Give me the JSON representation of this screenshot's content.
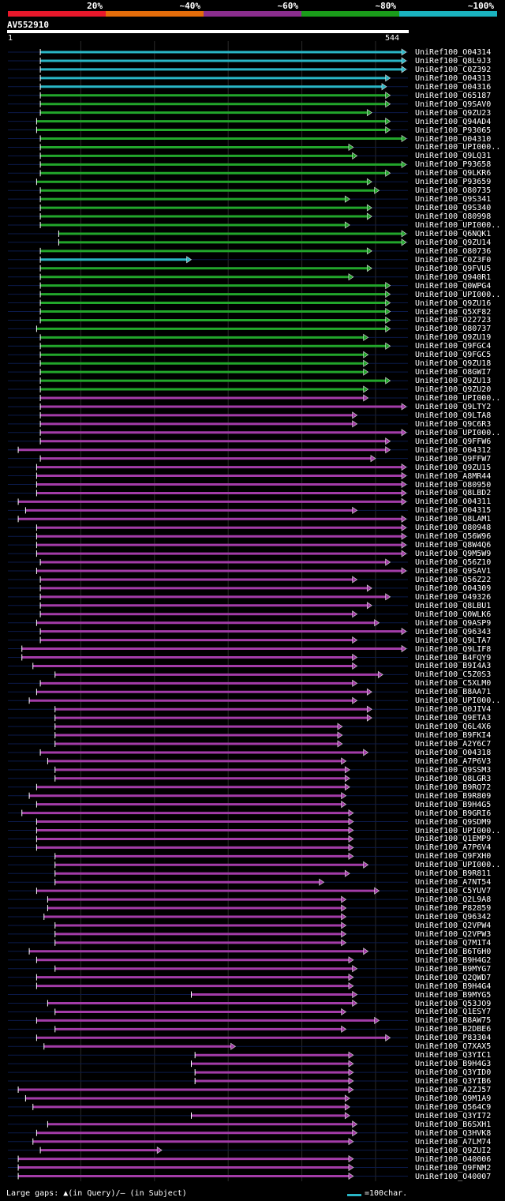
{
  "legend": {
    "segments": [
      {
        "label": "20%",
        "color": "#e8182b"
      },
      {
        "label": "~40%",
        "color": "#e46c0a"
      },
      {
        "label": "~60%",
        "color": "#8b2e8e"
      },
      {
        "label": "~80%",
        "color": "#1a9c1a"
      },
      {
        "label": "~100%",
        "color": "#1ab3bf"
      }
    ]
  },
  "query": {
    "name": "AV552910",
    "start": "1",
    "end": "544"
  },
  "footer": {
    "text": "Large gaps: ▲(in Query)/– (in Subject)",
    "scale": "=100char."
  },
  "chart_data": {
    "type": "alignment-overview",
    "query_length": 544,
    "hits": [
      {
        "name": "UniRef100_O04314",
        "color": "cyan",
        "start": 45,
        "end": 544
      },
      {
        "name": "UniRef100_Q8L9J3",
        "color": "cyan",
        "start": 45,
        "end": 544
      },
      {
        "name": "UniRef100_C0Z392",
        "color": "cyan",
        "start": 45,
        "end": 544
      },
      {
        "name": "UniRef100_O04313",
        "color": "cyan",
        "start": 45,
        "end": 520
      },
      {
        "name": "UniRef100_O04316",
        "color": "cyan",
        "start": 45,
        "end": 515
      },
      {
        "name": "UniRef100_O65187",
        "color": "green",
        "start": 45,
        "end": 520
      },
      {
        "name": "UniRef100_Q9SAV0",
        "color": "green",
        "start": 45,
        "end": 520
      },
      {
        "name": "UniRef100_Q9ZU23",
        "color": "green",
        "start": 45,
        "end": 495
      },
      {
        "name": "UniRef100_Q94AD4",
        "color": "green",
        "start": 40,
        "end": 520
      },
      {
        "name": "UniRef100_P93065",
        "color": "green",
        "start": 40,
        "end": 520
      },
      {
        "name": "UniRef100_O04310",
        "color": "green",
        "start": 45,
        "end": 544
      },
      {
        "name": "UniRef100_UPI000..",
        "color": "green",
        "start": 45,
        "end": 470
      },
      {
        "name": "UniRef100_Q9LQ31",
        "color": "green",
        "start": 45,
        "end": 475
      },
      {
        "name": "UniRef100_P93658",
        "color": "green",
        "start": 45,
        "end": 544
      },
      {
        "name": "UniRef100_Q9LKR6",
        "color": "green",
        "start": 45,
        "end": 520
      },
      {
        "name": "UniRef100_P93659",
        "color": "green",
        "start": 40,
        "end": 495
      },
      {
        "name": "UniRef100_O80735",
        "color": "green",
        "start": 45,
        "end": 505
      },
      {
        "name": "UniRef100_Q9S341",
        "color": "green",
        "start": 45,
        "end": 465
      },
      {
        "name": "UniRef100_Q9S340",
        "color": "green",
        "start": 45,
        "end": 495
      },
      {
        "name": "UniRef100_O80998",
        "color": "green",
        "start": 45,
        "end": 495
      },
      {
        "name": "UniRef100_UPI000..",
        "color": "green",
        "start": 45,
        "end": 465
      },
      {
        "name": "UniRef100_Q6NQK1",
        "color": "green",
        "start": 70,
        "end": 544
      },
      {
        "name": "UniRef100_Q9ZU14",
        "color": "green",
        "start": 70,
        "end": 544
      },
      {
        "name": "UniRef100_O80736",
        "color": "green",
        "start": 45,
        "end": 495
      },
      {
        "name": "UniRef100_C0Z3F0",
        "color": "cyan",
        "start": 45,
        "end": 250
      },
      {
        "name": "UniRef100_Q9FVU5",
        "color": "green",
        "start": 45,
        "end": 495
      },
      {
        "name": "UniRef100_Q940R1",
        "color": "green",
        "start": 45,
        "end": 470
      },
      {
        "name": "UniRef100_Q0WPG4",
        "color": "green",
        "start": 45,
        "end": 520
      },
      {
        "name": "UniRef100_UPI000..",
        "color": "green",
        "start": 45,
        "end": 520
      },
      {
        "name": "UniRef100_Q9ZU16",
        "color": "green",
        "start": 45,
        "end": 520
      },
      {
        "name": "UniRef100_Q5XF82",
        "color": "green",
        "start": 45,
        "end": 520
      },
      {
        "name": "UniRef100_O22723",
        "color": "green",
        "start": 45,
        "end": 520
      },
      {
        "name": "UniRef100_O80737",
        "color": "green",
        "start": 40,
        "end": 520
      },
      {
        "name": "UniRef100_Q9ZU19",
        "color": "green",
        "start": 45,
        "end": 490
      },
      {
        "name": "UniRef100_Q9FGC4",
        "color": "green",
        "start": 45,
        "end": 520
      },
      {
        "name": "UniRef100_Q9FGC5",
        "color": "green",
        "start": 45,
        "end": 490
      },
      {
        "name": "UniRef100_Q9ZU18",
        "color": "green",
        "start": 45,
        "end": 490
      },
      {
        "name": "UniRef100_O8GWI7",
        "color": "green",
        "start": 45,
        "end": 490
      },
      {
        "name": "UniRef100_Q9ZU13",
        "color": "green",
        "start": 45,
        "end": 520
      },
      {
        "name": "UniRef100_Q9ZU20",
        "color": "green",
        "start": 45,
        "end": 490
      },
      {
        "name": "UniRef100_UPI000..",
        "color": "purple",
        "start": 45,
        "end": 490
      },
      {
        "name": "UniRef100_Q9LTY2",
        "color": "purple",
        "start": 45,
        "end": 544
      },
      {
        "name": "UniRef100_Q9LTA8",
        "color": "purple",
        "start": 45,
        "end": 475
      },
      {
        "name": "UniRef100_Q9C6R3",
        "color": "purple",
        "start": 45,
        "end": 475
      },
      {
        "name": "UniRef100_UPI000..",
        "color": "purple",
        "start": 45,
        "end": 544
      },
      {
        "name": "UniRef100_Q9FFW6",
        "color": "purple",
        "start": 45,
        "end": 520
      },
      {
        "name": "UniRef100_O04312",
        "color": "purple",
        "start": 15,
        "end": 520
      },
      {
        "name": "UniRef100_Q9FFW7",
        "color": "purple",
        "start": 45,
        "end": 500
      },
      {
        "name": "UniRef100_Q9ZU15",
        "color": "purple",
        "start": 40,
        "end": 544
      },
      {
        "name": "UniRef100_A8MR44",
        "color": "purple",
        "start": 40,
        "end": 544
      },
      {
        "name": "UniRef100_O80950",
        "color": "purple",
        "start": 40,
        "end": 544
      },
      {
        "name": "UniRef100_Q8LBD2",
        "color": "purple",
        "start": 40,
        "end": 544
      },
      {
        "name": "UniRef100_O04311",
        "color": "purple",
        "start": 15,
        "end": 544
      },
      {
        "name": "UniRef100_O04315",
        "color": "purple",
        "start": 25,
        "end": 475
      },
      {
        "name": "UniRef100_Q8LAM1",
        "color": "purple",
        "start": 15,
        "end": 544
      },
      {
        "name": "UniRef100_O80948",
        "color": "purple",
        "start": 40,
        "end": 544
      },
      {
        "name": "UniRef100_Q56W96",
        "color": "purple",
        "start": 40,
        "end": 544
      },
      {
        "name": "UniRef100_Q8W4Q6",
        "color": "purple",
        "start": 40,
        "end": 544
      },
      {
        "name": "UniRef100_Q9M5W9",
        "color": "purple",
        "start": 40,
        "end": 544
      },
      {
        "name": "UniRef100_Q56Z10",
        "color": "purple",
        "start": 45,
        "end": 520
      },
      {
        "name": "UniRef100_Q9SAV1",
        "color": "purple",
        "start": 40,
        "end": 544
      },
      {
        "name": "UniRef100_Q56Z22",
        "color": "purple",
        "start": 45,
        "end": 475
      },
      {
        "name": "UniRef100_O04309",
        "color": "purple",
        "start": 45,
        "end": 495
      },
      {
        "name": "UniRef100_O49326",
        "color": "purple",
        "start": 45,
        "end": 520
      },
      {
        "name": "UniRef100_Q8LBU1",
        "color": "purple",
        "start": 45,
        "end": 495
      },
      {
        "name": "UniRef100_Q0WLK6",
        "color": "purple",
        "start": 45,
        "end": 475
      },
      {
        "name": "UniRef100_Q9ASP9",
        "color": "purple",
        "start": 40,
        "end": 505
      },
      {
        "name": "UniRef100_Q96343",
        "color": "purple",
        "start": 45,
        "end": 544
      },
      {
        "name": "UniRef100_Q9LTA7",
        "color": "purple",
        "start": 45,
        "end": 475
      },
      {
        "name": "UniRef100_Q9LIF8",
        "color": "purple",
        "start": 20,
        "end": 544
      },
      {
        "name": "UniRef100_B4FQY9",
        "color": "purple",
        "start": 20,
        "end": 475
      },
      {
        "name": "UniRef100_B9I4A3",
        "color": "purple",
        "start": 35,
        "end": 475
      },
      {
        "name": "UniRef100_C5Z0S3",
        "color": "purple",
        "start": 65,
        "end": 510
      },
      {
        "name": "UniRef100_C5XLM0",
        "color": "purple",
        "start": 45,
        "end": 475
      },
      {
        "name": "UniRef100_B8AA71",
        "color": "purple",
        "start": 40,
        "end": 495
      },
      {
        "name": "UniRef100_UPI000..",
        "color": "purple",
        "start": 30,
        "end": 475
      },
      {
        "name": "UniRef100_Q0JIV4",
        "color": "purple",
        "start": 65,
        "end": 495
      },
      {
        "name": "UniRef100_Q9ETA3",
        "color": "purple",
        "start": 65,
        "end": 495
      },
      {
        "name": "UniRef100_Q6L4X6",
        "color": "purple",
        "start": 65,
        "end": 455
      },
      {
        "name": "UniRef100_B9FKI4",
        "color": "purple",
        "start": 65,
        "end": 455
      },
      {
        "name": "UniRef100_A2Y6C7",
        "color": "purple",
        "start": 65,
        "end": 455
      },
      {
        "name": "UniRef100_O04318",
        "color": "purple",
        "start": 45,
        "end": 490
      },
      {
        "name": "UniRef100_A7P6V3",
        "color": "purple",
        "start": 55,
        "end": 460
      },
      {
        "name": "UniRef100_Q9SSM3",
        "color": "purple",
        "start": 65,
        "end": 465
      },
      {
        "name": "UniRef100_Q8LGR3",
        "color": "purple",
        "start": 65,
        "end": 465
      },
      {
        "name": "UniRef100_B9RQ72",
        "color": "purple",
        "start": 40,
        "end": 465
      },
      {
        "name": "UniRef100_B9R809",
        "color": "purple",
        "start": 30,
        "end": 460
      },
      {
        "name": "UniRef100_B9H4G5",
        "color": "purple",
        "start": 40,
        "end": 460
      },
      {
        "name": "UniRef100_B9GRI6",
        "color": "purple",
        "start": 20,
        "end": 470
      },
      {
        "name": "UniRef100_Q9SDM9",
        "color": "purple",
        "start": 40,
        "end": 470
      },
      {
        "name": "UniRef100_UPI000..",
        "color": "purple",
        "start": 40,
        "end": 470
      },
      {
        "name": "UniRef100_Q1EMP9",
        "color": "purple",
        "start": 40,
        "end": 470
      },
      {
        "name": "UniRef100_A7P6V4",
        "color": "purple",
        "start": 40,
        "end": 470
      },
      {
        "name": "UniRef100_Q9FXH0",
        "color": "purple",
        "start": 65,
        "end": 470
      },
      {
        "name": "UniRef100_UPI000..",
        "color": "purple",
        "start": 65,
        "end": 490
      },
      {
        "name": "UniRef100_B9R811",
        "color": "purple",
        "start": 65,
        "end": 465
      },
      {
        "name": "UniRef100_A7NT54",
        "color": "purple",
        "start": 65,
        "end": 430
      },
      {
        "name": "UniRef100_C5YUV7",
        "color": "purple",
        "start": 40,
        "end": 505
      },
      {
        "name": "UniRef100_Q2L9A8",
        "color": "purple",
        "start": 55,
        "end": 460
      },
      {
        "name": "UniRef100_P82859",
        "color": "purple",
        "start": 55,
        "end": 460
      },
      {
        "name": "UniRef100_Q96342",
        "color": "purple",
        "start": 50,
        "end": 460
      },
      {
        "name": "UniRef100_Q2VPW4",
        "color": "purple",
        "start": 65,
        "end": 460
      },
      {
        "name": "UniRef100_Q2VPW3",
        "color": "purple",
        "start": 65,
        "end": 460
      },
      {
        "name": "UniRef100_Q7M1T4",
        "color": "purple",
        "start": 65,
        "end": 460
      },
      {
        "name": "UniRef100_B6T6H0",
        "color": "purple",
        "start": 30,
        "end": 490
      },
      {
        "name": "UniRef100_B9H4G2",
        "color": "purple",
        "start": 40,
        "end": 470
      },
      {
        "name": "UniRef100_B9MYG7",
        "color": "purple",
        "start": 65,
        "end": 475
      },
      {
        "name": "UniRef100_Q2QWD7",
        "color": "purple",
        "start": 40,
        "end": 470
      },
      {
        "name": "UniRef100_B9H4G4",
        "color": "purple",
        "start": 40,
        "end": 470
      },
      {
        "name": "UniRef100_B9MYG5",
        "color": "purple",
        "start": 250,
        "end": 475
      },
      {
        "name": "UniRef100_Q53JO9",
        "color": "purple",
        "start": 55,
        "end": 475
      },
      {
        "name": "UniRef100_Q1ESY7",
        "color": "purple",
        "start": 65,
        "end": 460
      },
      {
        "name": "UniRef100_B8AW75",
        "color": "purple",
        "start": 40,
        "end": 505
      },
      {
        "name": "UniRef100_B2DBE6",
        "color": "purple",
        "start": 65,
        "end": 460
      },
      {
        "name": "UniRef100_P83304",
        "color": "purple",
        "start": 40,
        "end": 520
      },
      {
        "name": "UniRef100_Q7XAX5",
        "color": "purple",
        "start": 50,
        "end": 310
      },
      {
        "name": "UniRef100_Q3YIC1",
        "color": "purple",
        "start": 255,
        "end": 470
      },
      {
        "name": "UniRef100_B9H4G3",
        "color": "purple",
        "start": 250,
        "end": 470
      },
      {
        "name": "UniRef100_Q3YID0",
        "color": "purple",
        "start": 255,
        "end": 470
      },
      {
        "name": "UniRef100_Q3YIB6",
        "color": "purple",
        "start": 255,
        "end": 470
      },
      {
        "name": "UniRef100_A2ZJ57",
        "color": "purple",
        "start": 15,
        "end": 470
      },
      {
        "name": "UniRef100_Q9M1A9",
        "color": "purple",
        "start": 25,
        "end": 465
      },
      {
        "name": "UniRef100_Q564C9",
        "color": "purple",
        "start": 35,
        "end": 465
      },
      {
        "name": "UniRef100_Q3YI72",
        "color": "purple",
        "start": 250,
        "end": 465
      },
      {
        "name": "UniRef100_B6SXH1",
        "color": "purple",
        "start": 55,
        "end": 475
      },
      {
        "name": "UniRef100_Q3HVK8",
        "color": "purple",
        "start": 40,
        "end": 475
      },
      {
        "name": "UniRef100_A7LM74",
        "color": "purple",
        "start": 35,
        "end": 470
      },
      {
        "name": "UniRef100_Q9ZUI2",
        "color": "purple",
        "start": 45,
        "end": 210
      },
      {
        "name": "UniRef100_O40006",
        "color": "purple",
        "start": 15,
        "end": 470
      },
      {
        "name": "UniRef100_Q9FNM2",
        "color": "purple",
        "start": 15,
        "end": 470
      },
      {
        "name": "UniRef100_O40007",
        "color": "purple",
        "start": 15,
        "end": 470
      }
    ]
  }
}
